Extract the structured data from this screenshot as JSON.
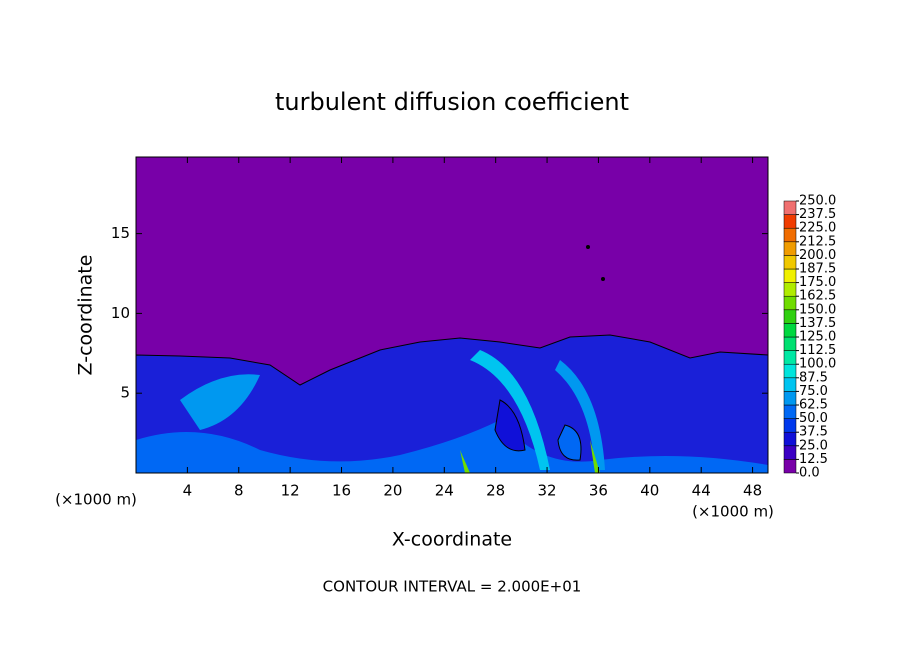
{
  "chart_data": {
    "type": "contour",
    "title": "turbulent diffusion coefficient",
    "x_label": "X-coordinate",
    "y_label": "Z-coordinate",
    "x_unit": "(×1000 m)",
    "y_unit": "(×1000 m)",
    "footnote": "CONTOUR INTERVAL = 2.000E+01",
    "xlim": [
      0,
      49.2
    ],
    "ylim": [
      0,
      19.8
    ],
    "xticks": [
      4,
      8,
      12,
      16,
      20,
      24,
      28,
      32,
      36,
      40,
      44,
      48
    ],
    "yticks": [
      5,
      10,
      15
    ],
    "colorbar": {
      "ticks": [
        {
          "value": 0,
          "label": "0.0"
        },
        {
          "value": 12.5,
          "label": "12.5"
        },
        {
          "value": 25,
          "label": "25.0"
        },
        {
          "value": 37.5,
          "label": "37.5"
        },
        {
          "value": 50,
          "label": "50.0"
        },
        {
          "value": 62.5,
          "label": "62.5"
        },
        {
          "value": 75,
          "label": "75.0"
        },
        {
          "value": 87.5,
          "label": "87.5"
        },
        {
          "value": 100,
          "label": "100.0"
        },
        {
          "value": 112.5,
          "label": "112.5"
        },
        {
          "value": 125,
          "label": "125.0"
        },
        {
          "value": 137.5,
          "label": "137.5"
        },
        {
          "value": 150,
          "label": "150.0"
        },
        {
          "value": 162.5,
          "label": "162.5"
        },
        {
          "value": 175,
          "label": "175.0"
        },
        {
          "value": 187.5,
          "label": "187.5"
        },
        {
          "value": 200,
          "label": "200.0"
        },
        {
          "value": 212.5,
          "label": "212.5"
        },
        {
          "value": 225,
          "label": "225.0"
        },
        {
          "value": 237.5,
          "label": "237.5"
        },
        {
          "value": 250,
          "label": "250.0"
        }
      ],
      "colors": [
        "#7800a8",
        "#3c00c4",
        "#1010d8",
        "#0038ec",
        "#0068f4",
        "#0098f0",
        "#00c4f0",
        "#00e4dc",
        "#00e8a4",
        "#00e070",
        "#00d840",
        "#30d010",
        "#70dc00",
        "#b0ec00",
        "#f0f000",
        "#f0c800",
        "#f09c00",
        "#f06c00",
        "#f03c00",
        "#f07070"
      ]
    }
  }
}
